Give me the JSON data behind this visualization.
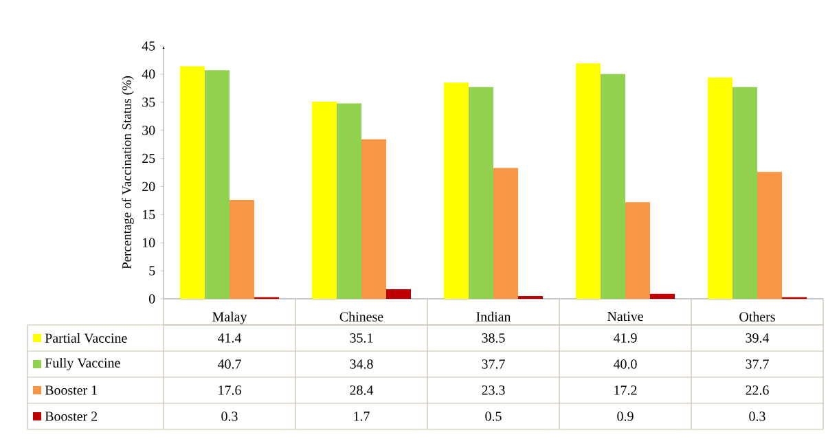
{
  "chart_data": {
    "type": "bar",
    "ylabel": "Percentage of Vaccination Status (%)",
    "categories": [
      "Malay",
      "Chinese",
      "Indian",
      "Native",
      "Others"
    ],
    "series": [
      {
        "name": "Partial Vaccine",
        "color": "#ffff00",
        "values": [
          41.4,
          35.1,
          38.5,
          41.9,
          39.4
        ],
        "value_labels": [
          "41.4",
          "35.1",
          "38.5",
          "41.9",
          "39.4"
        ]
      },
      {
        "name": "Fully Vaccine",
        "color": "#92d050",
        "values": [
          40.7,
          34.8,
          37.7,
          40.0,
          37.7
        ],
        "value_labels": [
          "40.7",
          "34.8",
          "37.7",
          "40.0",
          "37.7"
        ]
      },
      {
        "name": "Booster 1",
        "color": "#f79646",
        "values": [
          17.6,
          28.4,
          23.3,
          17.2,
          22.6
        ],
        "value_labels": [
          "17.6",
          "28.4",
          "23.3",
          "17.2",
          "22.6"
        ]
      },
      {
        "name": "Booster 2",
        "color": "#c00000",
        "values": [
          0.3,
          1.7,
          0.5,
          0.9,
          0.3
        ],
        "value_labels": [
          "0.3",
          "1.7",
          "0.5",
          "0.9",
          "0.3"
        ]
      }
    ],
    "ylim": [
      0,
      45
    ],
    "yticks": [
      0,
      5,
      10,
      15,
      20,
      25,
      30,
      35,
      40,
      45
    ],
    "grid": false,
    "legend": "bottom left"
  }
}
